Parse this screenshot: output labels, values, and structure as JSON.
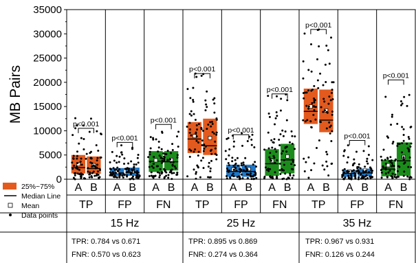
{
  "chart_data": {
    "type": "box",
    "ylabel": "MB Pairs",
    "ylim": [
      0,
      35000
    ],
    "yticks": [
      0,
      5000,
      10000,
      15000,
      20000,
      25000,
      30000,
      35000
    ],
    "ytick_labels": [
      "0",
      "5000",
      "10000",
      "15000",
      "20000",
      "25000",
      "30000",
      "35000"
    ],
    "colors": {
      "TP": "#e35a1e",
      "FP": "#1f78c8",
      "FN": "#1b8c1b"
    },
    "legend": {
      "placement": "bottom-left",
      "entries": [
        {
          "label": "25%~75%",
          "symbol": "box",
          "color": "#e35a1e"
        },
        {
          "label": "Median Line",
          "symbol": "line"
        },
        {
          "label": "Mean",
          "symbol": "square"
        },
        {
          "label": "Data points",
          "symbol": "dot"
        }
      ]
    },
    "sub_labels": [
      "A",
      "B"
    ],
    "significance_label": "p<0.001",
    "groups": [
      {
        "frequency": "15 Hz",
        "stats": [
          "TPR: 0.784 vs 0.671",
          "FNR: 0.570 vs 0.623"
        ],
        "categories": [
          {
            "name": "TP",
            "boxes": [
              {
                "label": "A",
                "q1": 1200,
                "q3": 5000,
                "median": 2400,
                "mean": 3100,
                "max": 12600
              },
              {
                "label": "B",
                "q1": 1100,
                "q3": 4700,
                "median": 2200,
                "mean": 2900,
                "max": 12500
              }
            ],
            "sig_y": 10500
          },
          {
            "name": "FP",
            "boxes": [
              {
                "label": "A",
                "q1": 700,
                "q3": 2300,
                "median": 1300,
                "mean": 1500,
                "max": 7000
              },
              {
                "label": "B",
                "q1": 700,
                "q3": 2400,
                "median": 1400,
                "mean": 1600,
                "max": 6500
              }
            ],
            "sig_y": 7600
          },
          {
            "name": "FN",
            "boxes": [
              {
                "label": "A",
                "q1": 1500,
                "q3": 5800,
                "median": 3700,
                "mean": 3900,
                "max": 9800
              },
              {
                "label": "B",
                "q1": 1800,
                "q3": 5800,
                "median": 3600,
                "mean": 4000,
                "max": 9800
              }
            ],
            "sig_y": 11300
          }
        ]
      },
      {
        "frequency": "25 Hz",
        "stats": [
          "TPR: 0.895 vs 0.869",
          "FNR: 0.274 vs 0.364"
        ],
        "categories": [
          {
            "name": "TP",
            "boxes": [
              {
                "label": "A",
                "q1": 5400,
                "q3": 11800,
                "median": 8300,
                "mean": 8900,
                "max": 21800
              },
              {
                "label": "B",
                "q1": 5000,
                "q3": 12500,
                "median": 6900,
                "mean": 8500,
                "max": 21700
              }
            ],
            "sig_y": 21800
          },
          {
            "name": "FP",
            "boxes": [
              {
                "label": "A",
                "q1": 500,
                "q3": 3000,
                "median": 1600,
                "mean": 2000,
                "max": 9000
              },
              {
                "label": "B",
                "q1": 500,
                "q3": 3000,
                "median": 1600,
                "mean": 2100,
                "max": 9500
              }
            ],
            "sig_y": 9200
          },
          {
            "name": "FN",
            "boxes": [
              {
                "label": "A",
                "q1": 700,
                "q3": 6200,
                "median": 3200,
                "mean": 3800,
                "max": 17200
              },
              {
                "label": "B",
                "q1": 1200,
                "q3": 7300,
                "median": 4000,
                "mean": 4700,
                "max": 17500
              }
            ],
            "sig_y": 17600
          }
        ]
      },
      {
        "frequency": "35 Hz",
        "stats": [
          "TPR: 0.967 vs 0.931",
          "FNR: 0.126 vs 0.244"
        ],
        "categories": [
          {
            "name": "TP",
            "boxes": [
              {
                "label": "A",
                "q1": 11400,
                "q3": 18700,
                "median": 14000,
                "mean": 15000,
                "max": 30800
              },
              {
                "label": "B",
                "q1": 9700,
                "q3": 18500,
                "median": 12200,
                "mean": 14200,
                "max": 30900
              }
            ],
            "sig_y": 30900
          },
          {
            "name": "FP",
            "boxes": [
              {
                "label": "A",
                "q1": 500,
                "q3": 1900,
                "median": 1200,
                "mean": 1600,
                "max": 7000
              },
              {
                "label": "B",
                "q1": 600,
                "q3": 2200,
                "median": 1300,
                "mean": 1800,
                "max": 6800
              }
            ],
            "sig_y": 8000
          },
          {
            "name": "FN",
            "boxes": [
              {
                "label": "A",
                "q1": 600,
                "q3": 4000,
                "median": 2100,
                "mean": 2900,
                "max": 17000
              },
              {
                "label": "B",
                "q1": 700,
                "q3": 7600,
                "median": 3800,
                "mean": 4600,
                "max": 17400
              }
            ],
            "sig_y": 20500
          }
        ]
      }
    ]
  }
}
